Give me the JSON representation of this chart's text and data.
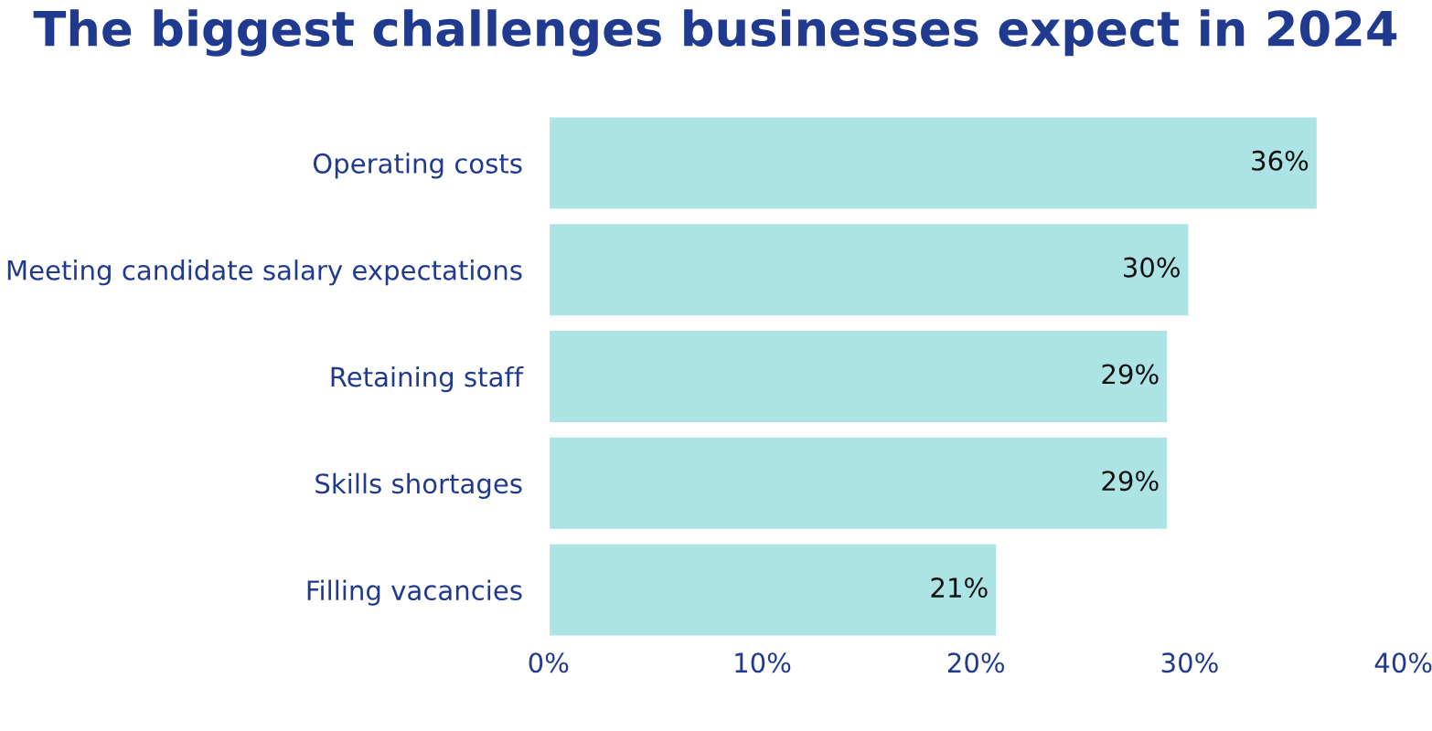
{
  "chart_data": {
    "type": "bar",
    "orientation": "horizontal",
    "title": "The biggest challenges businesses expect in 2024",
    "categories": [
      "Operating costs",
      "Meeting candidate salary expectations",
      "Retaining staff",
      "Skills shortages",
      "Filling vacancies"
    ],
    "values": [
      36,
      30,
      29,
      29,
      21
    ],
    "color": "#ace4e6",
    "value_labels": [
      "36%",
      "30%",
      "29%",
      "29%",
      "21%"
    ],
    "xlim": [
      0,
      40
    ],
    "xticks": [
      {
        "value": 0,
        "label": "0%"
      },
      {
        "value": 10,
        "label": "10%"
      },
      {
        "value": 20,
        "label": "20%"
      },
      {
        "value": 30,
        "label": "30%"
      },
      {
        "value": 40,
        "label": "40%"
      }
    ],
    "grid": false,
    "legend": false
  }
}
